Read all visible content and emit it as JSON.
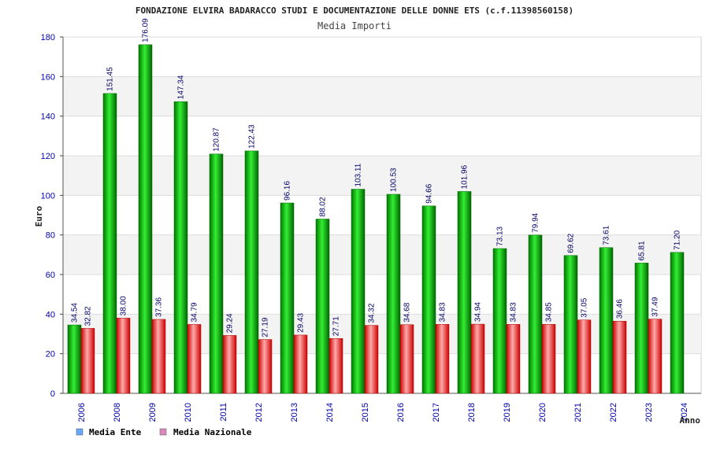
{
  "chart_data": {
    "type": "bar",
    "title": "FONDAZIONE ELVIRA BADARACCO STUDI E DOCUMENTAZIONE DELLE DONNE ETS (c.f.11398560158)",
    "subtitle": "Media Importi",
    "xlabel": "Anno",
    "ylabel": "Euro",
    "ylim": [
      0,
      180
    ],
    "yticks": [
      0,
      20,
      40,
      60,
      80,
      100,
      120,
      140,
      160,
      180
    ],
    "grid": true,
    "legend_position": "bottom-left",
    "categories": [
      "2006",
      "2008",
      "2009",
      "2010",
      "2011",
      "2012",
      "2013",
      "2014",
      "2015",
      "2016",
      "2017",
      "2018",
      "2019",
      "2020",
      "2021",
      "2022",
      "2023",
      "2024"
    ],
    "series": [
      {
        "name": "Media Ente",
        "color": "#00bb00",
        "legend_color": "#66aaff",
        "values": [
          34.54,
          151.45,
          176.09,
          147.34,
          120.87,
          122.43,
          96.16,
          88.02,
          103.11,
          100.53,
          94.66,
          101.96,
          73.13,
          79.94,
          69.62,
          73.61,
          65.81,
          71.2
        ],
        "labels": [
          "34.54",
          "151.45",
          "176.09",
          "147.34",
          "120.87",
          "122.43",
          "96.16",
          "88.02",
          "103.11",
          "100.53",
          "94.66",
          "101.96",
          "73.13",
          "79.94",
          "69.62",
          "73.61",
          "65.81",
          "71.20"
        ]
      },
      {
        "name": "Media Nazionale",
        "color": "#ee1111",
        "legend_color": "#dd88bb",
        "values": [
          32.82,
          38.0,
          37.36,
          34.79,
          29.24,
          27.19,
          29.43,
          27.71,
          34.32,
          34.68,
          34.83,
          34.94,
          34.83,
          34.85,
          37.05,
          36.46,
          37.49,
          null
        ],
        "labels": [
          "32.82",
          "38.00",
          "37.36",
          "34.79",
          "29.24",
          "27.19",
          "29.43",
          "27.71",
          "34.32",
          "34.68",
          "34.83",
          "34.94",
          "34.83",
          "34.85",
          "37.05",
          "36.46",
          "37.49",
          null
        ]
      }
    ]
  }
}
